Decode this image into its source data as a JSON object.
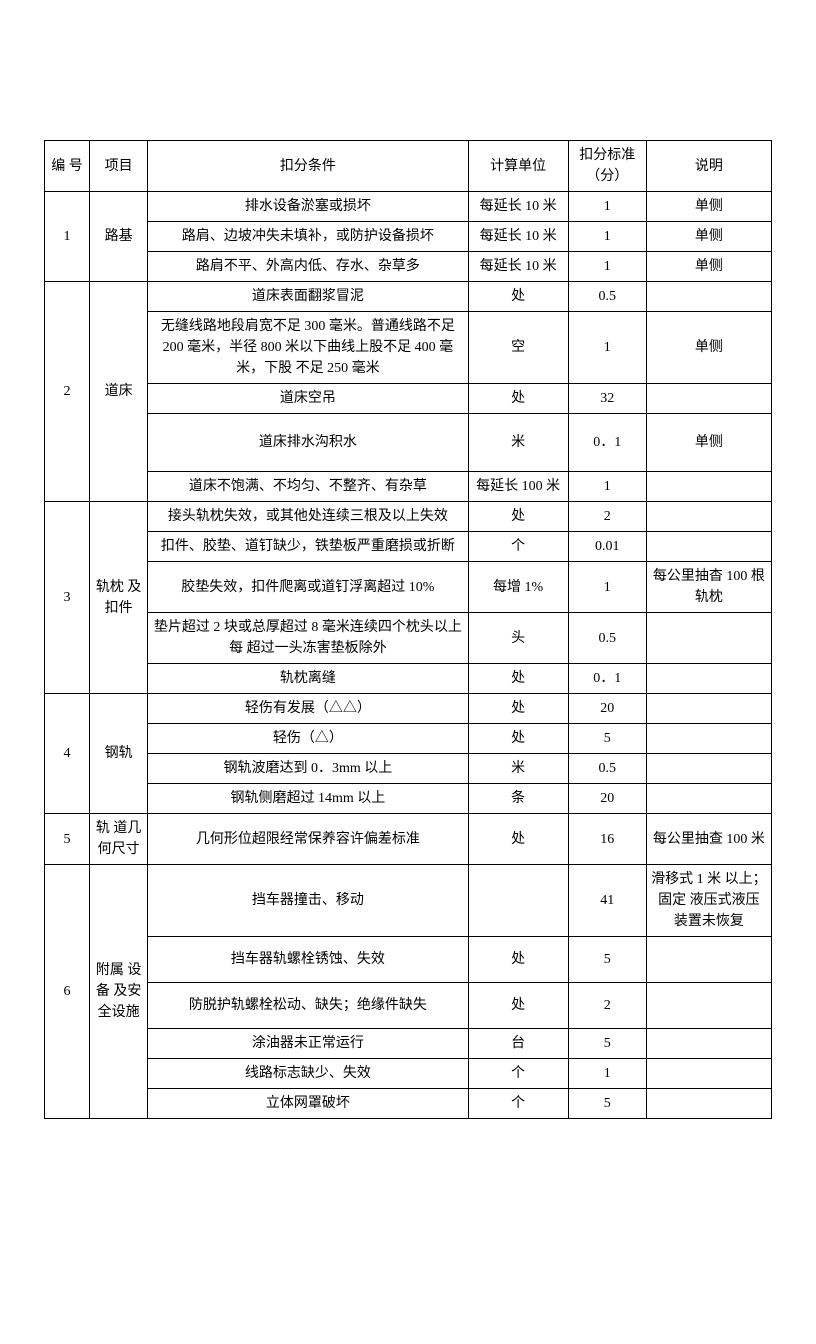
{
  "header": {
    "no": "编 号",
    "item": "项目",
    "cond": "扣分条件",
    "unit": "计算单位",
    "score": "扣分标准（分）",
    "note": "说明"
  },
  "rows": {
    "r1": {
      "no": "1",
      "item": "路基",
      "a": {
        "cond": "排水设备淤塞或损坏",
        "unit": "每延长 10 米",
        "score": "1",
        "note": "单侧"
      },
      "b": {
        "cond": "路肩、边坡冲失未填补，或防护设备损坏",
        "unit": "每延长 10 米",
        "score": "1",
        "note": "单侧"
      },
      "c": {
        "cond": "路肩不平、外高内低、存水、杂草多",
        "unit": "每延长 10 米",
        "score": "1",
        "note": "单侧"
      }
    },
    "r2": {
      "no": "2",
      "item": "道床",
      "a": {
        "cond": "道床表面翻浆冒泥",
        "unit": "处",
        "score": "0.5",
        "note": ""
      },
      "b": {
        "cond": "无缝线路地段肩宽不足 300 毫米。普通线路不足 200 毫米，半径 800 米以下曲线上股不足 400 毫米，下股 不足 250 毫米",
        "unit": "空",
        "score": "1",
        "note": "单侧"
      },
      "c": {
        "cond": "道床空吊",
        "unit": "处",
        "score": "32",
        "note": ""
      },
      "d": {
        "cond": "道床排水沟积水",
        "unit": "米",
        "score": "0．1",
        "note": "单侧"
      },
      "e": {
        "cond": "道床不饱满、不均匀、不整齐、有杂草",
        "unit": "每延长 100 米",
        "score": "1",
        "note": ""
      }
    },
    "r3": {
      "no": "3",
      "item": "轨枕 及扣件",
      "a": {
        "cond": "接头轨枕失效，或其他处连续三根及以上失效",
        "unit": "处",
        "score": "2",
        "note": ""
      },
      "b": {
        "cond": "扣件、胶垫、道钉缺少，铁垫板严重磨损或折断",
        "unit": "个",
        "score": "0.01",
        "note": ""
      },
      "c": {
        "cond": "胶垫失效，扣件爬离或道钉浮离超过 10%",
        "unit": "每增 1%",
        "score": "1",
        "note": "每公里抽杳 100 根轨枕"
      },
      "d": {
        "cond": "垫片超过 2 块或总厚超过 8 毫米连续四个枕头以上每 超过一头冻害垫板除外",
        "unit": "头",
        "score": "0.5",
        "note": ""
      },
      "e": {
        "cond": "轨枕离缝",
        "unit": "处",
        "score": "0．1",
        "note": ""
      }
    },
    "r4": {
      "no": "4",
      "item": "钢轨",
      "a": {
        "cond": "轻伤有发展（△△）",
        "unit": "处",
        "score": "20",
        "note": ""
      },
      "b": {
        "cond": "轻伤（△）",
        "unit": "处",
        "score": "5",
        "note": ""
      },
      "c": {
        "cond": "钢轨波磨达到 0．3mm 以上",
        "unit": "米",
        "score": "0.5",
        "note": ""
      },
      "d": {
        "cond": "钢轨侧磨超过 14mm 以上",
        "unit": "条",
        "score": "20",
        "note": ""
      }
    },
    "r5": {
      "no": "5",
      "item": "轨  道几何尺寸",
      "a": {
        "cond": "几何形位超限经常保养容许偏差标准",
        "unit": "处",
        "score": "16",
        "note": "每公里抽查 100 米"
      }
    },
    "r6": {
      "no": "6",
      "item": "附属 设备 及安全设施",
      "a": {
        "cond": "挡车器撞击、移动",
        "unit": "",
        "score": "41",
        "note": "滑移式 1 米 以上；固定 液压式液压 装置未恢复"
      },
      "b": {
        "cond": "挡车器轨螺栓锈蚀、失效",
        "unit": "处",
        "score": "5",
        "note": ""
      },
      "c": {
        "cond": "防脱护轨螺栓松动、缺失；绝缘件缺失",
        "unit": "处",
        "score": "2",
        "note": ""
      },
      "d": {
        "cond": "涂油器未正常运行",
        "unit": "台",
        "score": "5",
        "note": ""
      },
      "e": {
        "cond": "线路标志缺少、失效",
        "unit": "个",
        "score": "1",
        "note": ""
      },
      "f": {
        "cond": "立体网罩破坏",
        "unit": "个",
        "score": "5",
        "note": ""
      }
    }
  }
}
